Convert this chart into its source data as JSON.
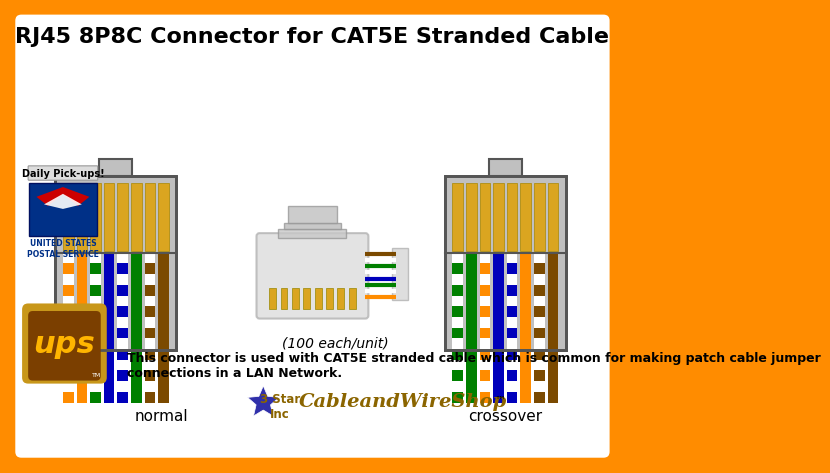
{
  "title": "RJ45 8P8C Connector for CAT5E Stranded Cable",
  "bg_color": "#FF8C00",
  "inner_bg": "#FFFFFF",
  "connector_bg": "#C0C0C0",
  "connector_border": "#555555",
  "normal_label": "normal",
  "crossover_label": "crossover",
  "caption_line1": "(100 each/unit)",
  "caption_line2": "This connector is used with CAT5E stranded cable which is common for making patch cable jumper\nconnections in a LAN Network.",
  "gold_pin_color": "#DAA520",
  "wire_colors_normal": [
    {
      "stripe": true,
      "base": "#FF8C00"
    },
    {
      "stripe": false,
      "base": "#FF8C00"
    },
    {
      "stripe": true,
      "base": "#008000"
    },
    {
      "stripe": false,
      "base": "#0000BB"
    },
    {
      "stripe": true,
      "base": "#0000BB"
    },
    {
      "stripe": false,
      "base": "#008000"
    },
    {
      "stripe": true,
      "base": "#7B4A00"
    },
    {
      "stripe": false,
      "base": "#7B4A00"
    }
  ],
  "wire_colors_crossover": [
    {
      "stripe": true,
      "base": "#008000"
    },
    {
      "stripe": false,
      "base": "#008000"
    },
    {
      "stripe": true,
      "base": "#FF8C00"
    },
    {
      "stripe": false,
      "base": "#0000BB"
    },
    {
      "stripe": true,
      "base": "#0000BB"
    },
    {
      "stripe": false,
      "base": "#FF8C00"
    },
    {
      "stripe": true,
      "base": "#7B4A00"
    },
    {
      "stripe": false,
      "base": "#7B4A00"
    }
  ],
  "usps_blue": "#003087",
  "ups_brown": "#7B3F00",
  "ups_gold": "#FFB500"
}
